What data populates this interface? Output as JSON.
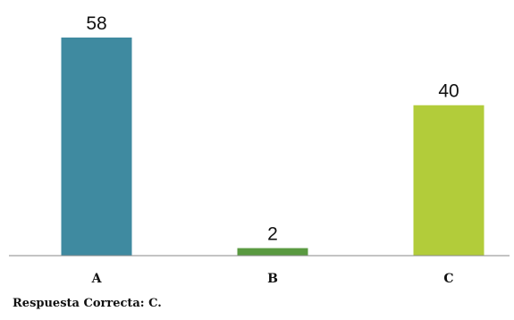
{
  "chart_data": {
    "type": "bar",
    "categories": [
      "A",
      "B",
      "C"
    ],
    "values": [
      58,
      2,
      40
    ],
    "colors": [
      "#3f8aa0",
      "#5a9a41",
      "#b2cc3a"
    ],
    "ylim": [
      0,
      58
    ],
    "grid": false,
    "legend": "none",
    "data_labels": true
  },
  "footnote": {
    "text": "Respuesta Correcta: C."
  }
}
